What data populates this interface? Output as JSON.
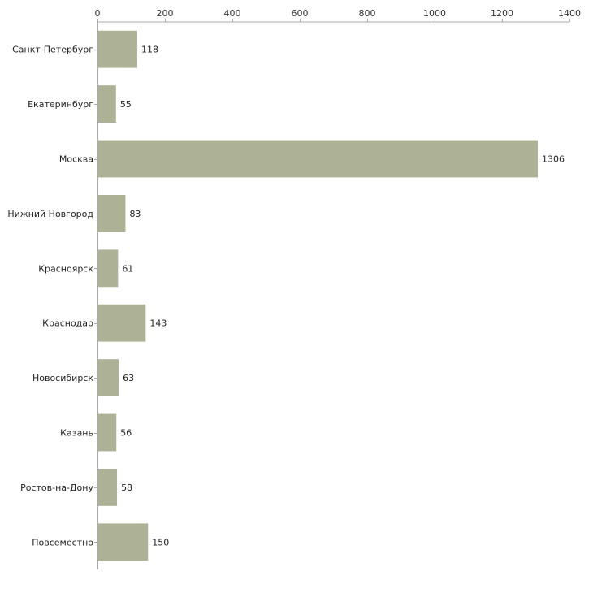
{
  "chart_data": {
    "type": "bar",
    "orientation": "horizontal",
    "title": "",
    "xlabel": "",
    "ylabel": "",
    "xlim": [
      0,
      1400
    ],
    "ticks": [
      0,
      200,
      400,
      600,
      800,
      1000,
      1200,
      1400
    ],
    "tick_labels": [
      "0",
      "200",
      "400",
      "600",
      "800",
      "1000",
      "1200",
      "1400"
    ],
    "grid": false,
    "categories": [
      "Санкт-Петербург",
      "Екатеринбург",
      "Москва",
      "Нижний Новгород",
      "Красноярск",
      "Краснодар",
      "Новосибирск",
      "Казань",
      "Ростов-на-Дону",
      "Повсеместно"
    ],
    "values": [
      118,
      55,
      1306,
      83,
      61,
      143,
      63,
      56,
      58,
      150
    ],
    "value_labels": [
      "118",
      "55",
      "1306",
      "83",
      "61",
      "143",
      "63",
      "56",
      "58",
      "150"
    ],
    "bar_color": "#adb297",
    "axis_color": "#aaaaaa"
  }
}
